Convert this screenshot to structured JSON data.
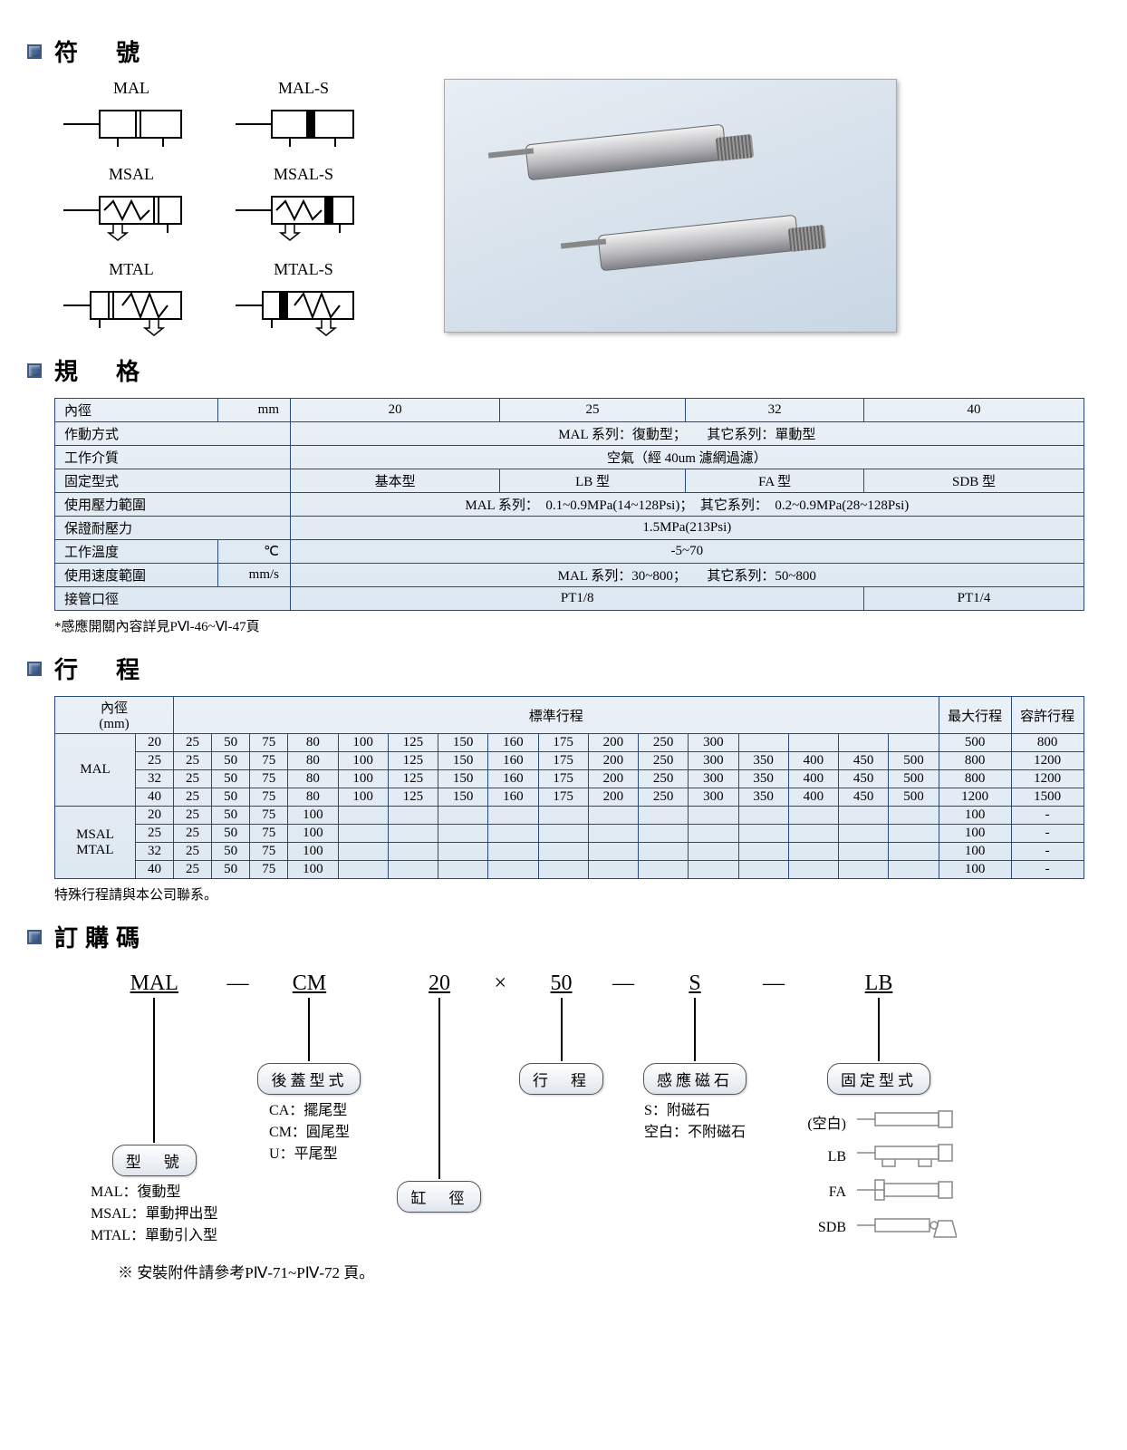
{
  "colors": {
    "bullet": "#4a6a9a",
    "table_border": "#2a4a7a",
    "table_bg_top": "#eaf0f6",
    "table_bg_bot": "#dde8f2",
    "photo_bg": "#d8e2ec"
  },
  "sections": {
    "symbols": "符　號",
    "spec": "規　格",
    "stroke": "行　程",
    "order": "訂購碼"
  },
  "symbols": {
    "mal": "MAL",
    "mals": "MAL-S",
    "msal": "MSAL",
    "msals": "MSAL-S",
    "mtal": "MTAL",
    "mtals": "MTAL-S"
  },
  "spec": {
    "headers": {
      "bore": "內徑",
      "bore_unit": "mm",
      "c20": "20",
      "c25": "25",
      "c32": "32",
      "c40": "40"
    },
    "rows": {
      "action": {
        "label": "作動方式",
        "value": "MAL 系列：復動型；　　其它系列：單動型"
      },
      "medium": {
        "label": "工作介質",
        "value": "空氣（經 40um 濾網過濾）"
      },
      "mount": {
        "label": "固定型式",
        "v1": "基本型",
        "v2": "LB 型",
        "v3": "FA 型",
        "v4": "SDB 型"
      },
      "pressure": {
        "label": "使用壓力範圍",
        "value": "MAL 系列：　0.1~0.9MPa(14~128Psi)；　其它系列：　0.2~0.9MPa(28~128Psi)"
      },
      "proof": {
        "label": "保證耐壓力",
        "value": "1.5MPa(213Psi)"
      },
      "temp": {
        "label": "工作溫度",
        "unit": "℃",
        "value": "-5~70"
      },
      "speed": {
        "label": "使用速度範圍",
        "unit": "mm/s",
        "value": "MAL 系列：30~800；　　其它系列：50~800"
      },
      "port": {
        "label": "接管口徑",
        "v1": "PT1/8",
        "v2": "PT1/4"
      }
    },
    "footnote": "*感應開關內容詳見PⅥ-46~Ⅵ-47頁"
  },
  "stroke": {
    "hdr_bore": "內徑\n(mm)",
    "hdr_std": "標準行程",
    "hdr_max": "最大行程",
    "hdr_allow": "容許行程",
    "group1": "MAL",
    "group2": "MSAL\nMTAL",
    "rows": [
      {
        "g": "MAL",
        "bore": "20",
        "vals": [
          "25",
          "50",
          "75",
          "80",
          "100",
          "125",
          "150",
          "160",
          "175",
          "200",
          "250",
          "300",
          "",
          "",
          "",
          ""
        ],
        "max": "500",
        "allow": "800"
      },
      {
        "g": "MAL",
        "bore": "25",
        "vals": [
          "25",
          "50",
          "75",
          "80",
          "100",
          "125",
          "150",
          "160",
          "175",
          "200",
          "250",
          "300",
          "350",
          "400",
          "450",
          "500"
        ],
        "max": "800",
        "allow": "1200"
      },
      {
        "g": "MAL",
        "bore": "32",
        "vals": [
          "25",
          "50",
          "75",
          "80",
          "100",
          "125",
          "150",
          "160",
          "175",
          "200",
          "250",
          "300",
          "350",
          "400",
          "450",
          "500"
        ],
        "max": "800",
        "allow": "1200"
      },
      {
        "g": "MAL",
        "bore": "40",
        "vals": [
          "25",
          "50",
          "75",
          "80",
          "100",
          "125",
          "150",
          "160",
          "175",
          "200",
          "250",
          "300",
          "350",
          "400",
          "450",
          "500"
        ],
        "max": "1200",
        "allow": "1500"
      },
      {
        "g": "MSAL",
        "bore": "20",
        "vals": [
          "25",
          "50",
          "75",
          "100",
          "",
          "",
          "",
          "",
          "",
          "",
          "",
          "",
          "",
          "",
          "",
          ""
        ],
        "max": "100",
        "allow": "-"
      },
      {
        "g": "MSAL",
        "bore": "25",
        "vals": [
          "25",
          "50",
          "75",
          "100",
          "",
          "",
          "",
          "",
          "",
          "",
          "",
          "",
          "",
          "",
          "",
          ""
        ],
        "max": "100",
        "allow": "-"
      },
      {
        "g": "MSAL",
        "bore": "32",
        "vals": [
          "25",
          "50",
          "75",
          "100",
          "",
          "",
          "",
          "",
          "",
          "",
          "",
          "",
          "",
          "",
          "",
          ""
        ],
        "max": "100",
        "allow": "-"
      },
      {
        "g": "MSAL",
        "bore": "40",
        "vals": [
          "25",
          "50",
          "75",
          "100",
          "",
          "",
          "",
          "",
          "",
          "",
          "",
          "",
          "",
          "",
          "",
          ""
        ],
        "max": "100",
        "allow": "-"
      }
    ],
    "footnote": "特殊行程請與本公司聯系。"
  },
  "order": {
    "t_model": "MAL",
    "t_cap": "CM",
    "t_bore": "20",
    "t_mult": "×",
    "t_stroke": "50",
    "t_mag": "S",
    "t_mount": "LB",
    "dash": "—",
    "pill_model": "型　號",
    "pill_cap": "後蓋型式",
    "pill_bore": "缸　徑",
    "pill_stroke": "行　程",
    "pill_mag": "感應磁石",
    "pill_mount": "固定型式",
    "model_desc": "MAL：復動型\nMSAL：單動押出型\nMTAL：單動引入型",
    "cap_desc": "CA：擺尾型\nCM：圓尾型\nU：平尾型",
    "mag_desc": "S：附磁石\n空白：不附磁石",
    "mount_items": [
      {
        "label": "(空白)"
      },
      {
        "label": "LB"
      },
      {
        "label": "FA"
      },
      {
        "label": "SDB"
      }
    ],
    "bottom_note": "※ 安裝附件請參考PⅣ-71~PⅣ-72 頁。"
  }
}
